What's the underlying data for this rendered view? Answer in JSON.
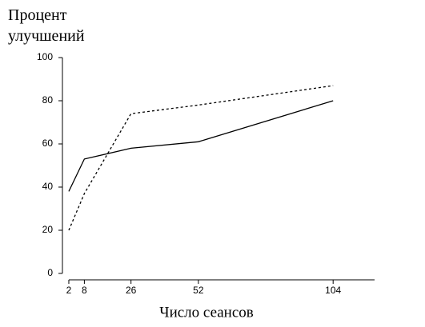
{
  "chart_data": {
    "type": "line",
    "ylabel": "Процент улучшений",
    "xlabel": "Число сеансов",
    "x": [
      2,
      8,
      26,
      52,
      104
    ],
    "series": [
      {
        "color": "#000000",
        "style": "solid",
        "values": [
          38,
          53,
          58,
          61,
          80
        ]
      },
      {
        "color": "#000000",
        "style": "dashed",
        "values": [
          20,
          37,
          74,
          78,
          87
        ]
      }
    ],
    "xlim": [
      0,
      120
    ],
    "xticks": [
      2,
      8,
      26,
      52,
      104
    ],
    "ylim": [
      0,
      100
    ],
    "yticks": [
      0,
      20,
      40,
      60,
      80,
      100
    ],
    "grid": false
  }
}
